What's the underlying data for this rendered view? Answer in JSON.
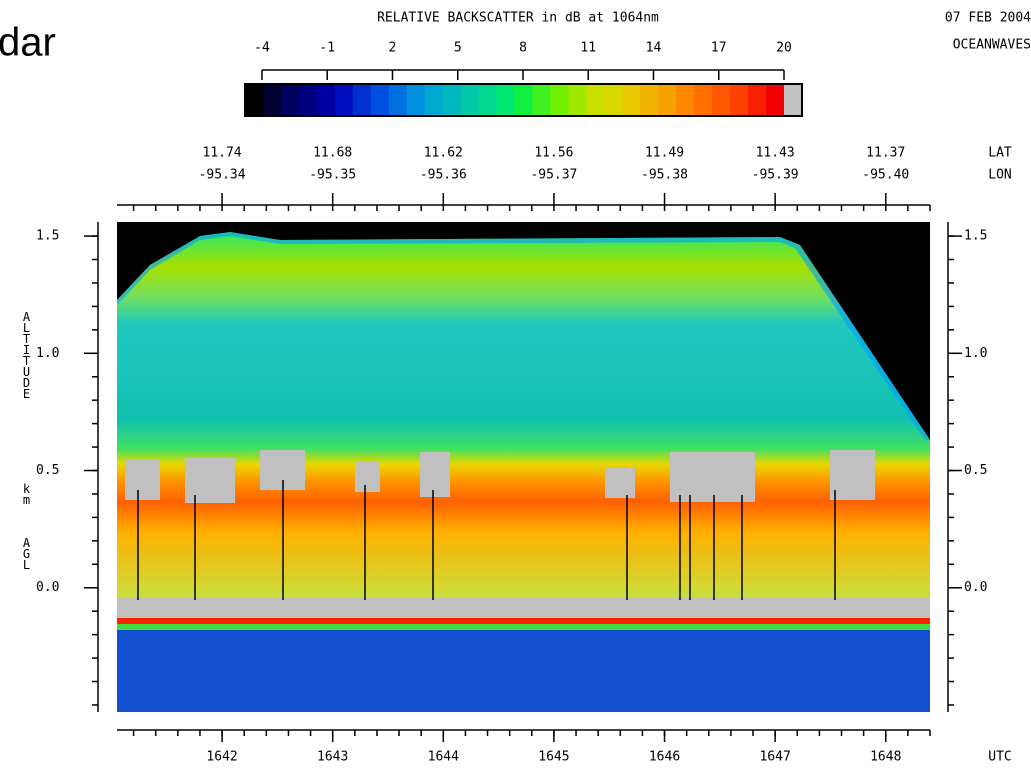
{
  "header": {
    "title_fragment": "dar",
    "date": "07 FEB 2004",
    "project": "OCEANWAVES"
  },
  "chart_data": {
    "type": "lidar-curtain",
    "colorbar": {
      "title": "RELATIVE BACKSCATTER in dB at 1064nm",
      "lim": [
        -4.78,
        20
      ],
      "ticks": [
        -4,
        -1,
        2,
        5,
        8,
        11,
        14,
        17,
        20
      ],
      "colors": [
        "#000000",
        "#000030",
        "#000060",
        "#000080",
        "#0000a0",
        "#0010c0",
        "#0030d0",
        "#0050e0",
        "#0070e0",
        "#0090e0",
        "#00a8d0",
        "#00b8c0",
        "#00c8a8",
        "#00d890",
        "#00e870",
        "#10f040",
        "#40f020",
        "#70f000",
        "#a0e800",
        "#c8e000",
        "#d8d800",
        "#e8c800",
        "#f0b400",
        "#f8a000",
        "#ff8800",
        "#ff7000",
        "#ff5800",
        "#ff4000",
        "#f82000",
        "#f00000"
      ],
      "over_color": "#c0c0c0"
    },
    "x_label": "UTC",
    "xlim": [
      1641.05,
      1648.4
    ],
    "xticks": [
      1642,
      1643,
      1644,
      1645,
      1646,
      1647,
      1648
    ],
    "top_axis": {
      "lat_label": "LAT",
      "lon_label": "LON",
      "lat": [
        11.74,
        11.68,
        11.62,
        11.56,
        11.49,
        11.43,
        11.37
      ],
      "lon": [
        -95.34,
        -95.35,
        -95.36,
        -95.37,
        -95.38,
        -95.39,
        {
          "value": -95.4,
          "label": "-95.40"
        }
      ]
    },
    "y_label": [
      "ALTITUDE",
      "km",
      "AGL"
    ],
    "ylim": [
      -0.53,
      1.56
    ],
    "yticks": [
      {
        "value": 0.0,
        "label": "0.0"
      },
      0.5,
      {
        "value": 1.0,
        "label": "1.0"
      },
      1.5
    ]
  }
}
